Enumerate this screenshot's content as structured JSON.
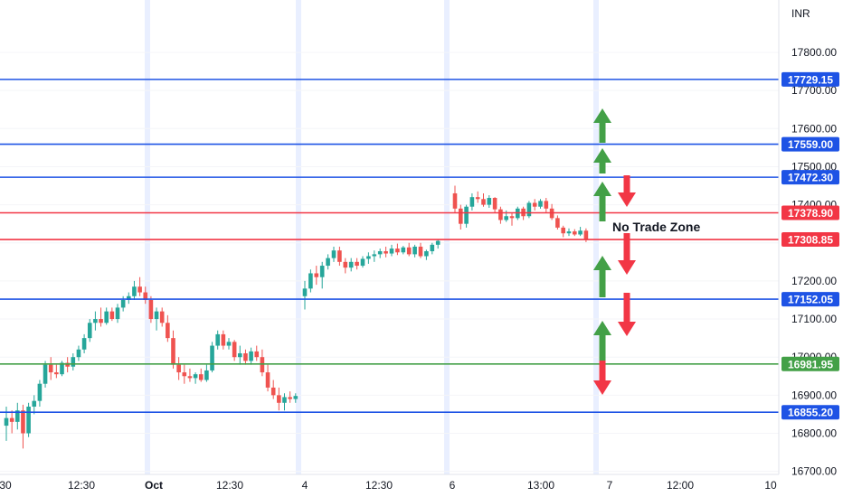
{
  "chart_data": {
    "type": "candlestick",
    "currency_label": "INR",
    "ylim": [
      16690,
      17920
    ],
    "y_ticks": [
      {
        "value": 17800,
        "label": "17800.00"
      },
      {
        "value": 17700,
        "label": "17700.00"
      },
      {
        "value": 17600,
        "label": "17600.00"
      },
      {
        "value": 17500,
        "label": "17500.00"
      },
      {
        "value": 17400,
        "label": "17400.00"
      },
      {
        "value": 17300,
        "label": "17300.00"
      },
      {
        "value": 17200,
        "label": "17200.00"
      },
      {
        "value": 17100,
        "label": "17100.00"
      },
      {
        "value": 17000,
        "label": "17000.00"
      },
      {
        "value": 16900,
        "label": "16900.00"
      },
      {
        "value": 16800,
        "label": "16800.00"
      },
      {
        "value": 16700,
        "label": "16700.00"
      }
    ],
    "x_ticks": [
      "30",
      "12:30",
      "Oct",
      "12:30",
      "4",
      "12:30",
      "6",
      "13:00",
      "7",
      "12:00",
      "10"
    ],
    "levels": [
      {
        "value": 17729.15,
        "label": "17729.15",
        "color": "#1e53e5"
      },
      {
        "value": 17559.0,
        "label": "17559.00",
        "color": "#1e53e5"
      },
      {
        "value": 17472.3,
        "label": "17472.30",
        "color": "#1e53e5"
      },
      {
        "value": 17378.9,
        "label": "17378.90",
        "color": "#f23645"
      },
      {
        "value": 17308.85,
        "label": "17308.85",
        "color": "#f23645"
      },
      {
        "value": 17152.05,
        "label": "17152.05",
        "color": "#1e53e5"
      },
      {
        "value": 16981.95,
        "label": "16981.95",
        "color": "#43a047"
      },
      {
        "value": 16855.2,
        "label": "16855.20",
        "color": "#1e53e5"
      }
    ],
    "annotation": "No Trade Zone",
    "colors": {
      "up": "#26a69a",
      "down": "#ef5350",
      "up_arrow": "#43a047",
      "down_arrow": "#f23645",
      "session_band": "#e9efff"
    },
    "candles": [
      {
        "o": 16820,
        "h": 16870,
        "l": 16780,
        "c": 16840
      },
      {
        "o": 16840,
        "h": 16860,
        "l": 16800,
        "c": 16830
      },
      {
        "o": 16830,
        "h": 16880,
        "l": 16810,
        "c": 16860
      },
      {
        "o": 16860,
        "h": 16875,
        "l": 16760,
        "c": 16800
      },
      {
        "o": 16800,
        "h": 16880,
        "l": 16790,
        "c": 16870
      },
      {
        "o": 16870,
        "h": 16900,
        "l": 16850,
        "c": 16885
      },
      {
        "o": 16885,
        "h": 16940,
        "l": 16870,
        "c": 16930
      },
      {
        "o": 16930,
        "h": 16990,
        "l": 16920,
        "c": 16980
      },
      {
        "o": 16980,
        "h": 17000,
        "l": 16940,
        "c": 16960
      },
      {
        "o": 16960,
        "h": 16980,
        "l": 16945,
        "c": 16955
      },
      {
        "o": 16955,
        "h": 16990,
        "l": 16950,
        "c": 16985
      },
      {
        "o": 16985,
        "h": 17000,
        "l": 16960,
        "c": 16975
      },
      {
        "o": 16975,
        "h": 17010,
        "l": 16965,
        "c": 17000
      },
      {
        "o": 17000,
        "h": 17030,
        "l": 16990,
        "c": 17020
      },
      {
        "o": 17020,
        "h": 17060,
        "l": 17010,
        "c": 17050
      },
      {
        "o": 17050,
        "h": 17100,
        "l": 17040,
        "c": 17090
      },
      {
        "o": 17090,
        "h": 17120,
        "l": 17070,
        "c": 17100
      },
      {
        "o": 17100,
        "h": 17130,
        "l": 17080,
        "c": 17090
      },
      {
        "o": 17090,
        "h": 17130,
        "l": 17085,
        "c": 17120
      },
      {
        "o": 17120,
        "h": 17130,
        "l": 17095,
        "c": 17100
      },
      {
        "o": 17100,
        "h": 17140,
        "l": 17090,
        "c": 17130
      },
      {
        "o": 17130,
        "h": 17160,
        "l": 17120,
        "c": 17150
      },
      {
        "o": 17150,
        "h": 17170,
        "l": 17140,
        "c": 17160
      },
      {
        "o": 17160,
        "h": 17200,
        "l": 17150,
        "c": 17185
      },
      {
        "o": 17185,
        "h": 17210,
        "l": 17160,
        "c": 17170
      },
      {
        "o": 17170,
        "h": 17185,
        "l": 17140,
        "c": 17150
      },
      {
        "o": 17150,
        "h": 17160,
        "l": 17090,
        "c": 17100
      },
      {
        "o": 17100,
        "h": 17130,
        "l": 17070,
        "c": 17120
      },
      {
        "o": 17120,
        "h": 17130,
        "l": 17080,
        "c": 17090
      },
      {
        "o": 17090,
        "h": 17110,
        "l": 17040,
        "c": 17050
      },
      {
        "o": 17050,
        "h": 17070,
        "l": 16970,
        "c": 16980
      },
      {
        "o": 16980,
        "h": 17000,
        "l": 16940,
        "c": 16960
      },
      {
        "o": 16960,
        "h": 16980,
        "l": 16930,
        "c": 16950
      },
      {
        "o": 16950,
        "h": 16970,
        "l": 16935,
        "c": 16945
      },
      {
        "o": 16945,
        "h": 16960,
        "l": 16930,
        "c": 16955
      },
      {
        "o": 16955,
        "h": 16970,
        "l": 16935,
        "c": 16940
      },
      {
        "o": 16940,
        "h": 16980,
        "l": 16935,
        "c": 16965
      },
      {
        "o": 16965,
        "h": 17040,
        "l": 16960,
        "c": 17030
      },
      {
        "o": 17030,
        "h": 17070,
        "l": 17020,
        "c": 17060
      },
      {
        "o": 17060,
        "h": 17070,
        "l": 17020,
        "c": 17030
      },
      {
        "o": 17030,
        "h": 17050,
        "l": 17020,
        "c": 17040
      },
      {
        "o": 17040,
        "h": 17045,
        "l": 16990,
        "c": 17000
      },
      {
        "o": 17000,
        "h": 17030,
        "l": 16980,
        "c": 17010
      },
      {
        "o": 17010,
        "h": 17020,
        "l": 16980,
        "c": 16990
      },
      {
        "o": 16990,
        "h": 17025,
        "l": 16980,
        "c": 17015
      },
      {
        "o": 17015,
        "h": 17030,
        "l": 16990,
        "c": 17000
      },
      {
        "o": 17000,
        "h": 17020,
        "l": 16950,
        "c": 16960
      },
      {
        "o": 16960,
        "h": 16980,
        "l": 16910,
        "c": 16920
      },
      {
        "o": 16920,
        "h": 16940,
        "l": 16890,
        "c": 16900
      },
      {
        "o": 16900,
        "h": 16920,
        "l": 16860,
        "c": 16880
      },
      {
        "o": 16880,
        "h": 16905,
        "l": 16860,
        "c": 16895
      },
      {
        "o": 16895,
        "h": 16910,
        "l": 16880,
        "c": 16890
      },
      {
        "o": 16890,
        "h": 16905,
        "l": 16880,
        "c": 16898
      },
      {
        "o": 17160,
        "h": 17200,
        "l": 17125,
        "c": 17180
      },
      {
        "o": 17180,
        "h": 17230,
        "l": 17170,
        "c": 17220
      },
      {
        "o": 17220,
        "h": 17240,
        "l": 17190,
        "c": 17210
      },
      {
        "o": 17210,
        "h": 17250,
        "l": 17180,
        "c": 17240
      },
      {
        "o": 17240,
        "h": 17270,
        "l": 17230,
        "c": 17260
      },
      {
        "o": 17260,
        "h": 17290,
        "l": 17250,
        "c": 17280
      },
      {
        "o": 17280,
        "h": 17290,
        "l": 17240,
        "c": 17250
      },
      {
        "o": 17250,
        "h": 17260,
        "l": 17220,
        "c": 17235
      },
      {
        "o": 17235,
        "h": 17260,
        "l": 17225,
        "c": 17250
      },
      {
        "o": 17250,
        "h": 17260,
        "l": 17230,
        "c": 17240
      },
      {
        "o": 17240,
        "h": 17265,
        "l": 17235,
        "c": 17258
      },
      {
        "o": 17258,
        "h": 17275,
        "l": 17245,
        "c": 17265
      },
      {
        "o": 17265,
        "h": 17280,
        "l": 17250,
        "c": 17270
      },
      {
        "o": 17270,
        "h": 17285,
        "l": 17260,
        "c": 17278
      },
      {
        "o": 17278,
        "h": 17290,
        "l": 17262,
        "c": 17272
      },
      {
        "o": 17272,
        "h": 17295,
        "l": 17265,
        "c": 17285
      },
      {
        "o": 17285,
        "h": 17298,
        "l": 17268,
        "c": 17275
      },
      {
        "o": 17275,
        "h": 17292,
        "l": 17270,
        "c": 17288
      },
      {
        "o": 17288,
        "h": 17300,
        "l": 17265,
        "c": 17270
      },
      {
        "o": 17270,
        "h": 17295,
        "l": 17262,
        "c": 17290
      },
      {
        "o": 17290,
        "h": 17300,
        "l": 17260,
        "c": 17265
      },
      {
        "o": 17265,
        "h": 17282,
        "l": 17255,
        "c": 17278
      },
      {
        "o": 17278,
        "h": 17300,
        "l": 17270,
        "c": 17295
      },
      {
        "o": 17295,
        "h": 17310,
        "l": 17285,
        "c": 17305
      },
      {
        "o": 17430,
        "h": 17450,
        "l": 17380,
        "c": 17390
      },
      {
        "o": 17390,
        "h": 17400,
        "l": 17335,
        "c": 17350
      },
      {
        "o": 17350,
        "h": 17400,
        "l": 17340,
        "c": 17395
      },
      {
        "o": 17395,
        "h": 17430,
        "l": 17385,
        "c": 17420
      },
      {
        "o": 17420,
        "h": 17435,
        "l": 17405,
        "c": 17415
      },
      {
        "o": 17415,
        "h": 17430,
        "l": 17395,
        "c": 17400
      },
      {
        "o": 17400,
        "h": 17425,
        "l": 17392,
        "c": 17418
      },
      {
        "o": 17418,
        "h": 17420,
        "l": 17380,
        "c": 17388
      },
      {
        "o": 17388,
        "h": 17395,
        "l": 17350,
        "c": 17360
      },
      {
        "o": 17360,
        "h": 17385,
        "l": 17355,
        "c": 17370
      },
      {
        "o": 17370,
        "h": 17378,
        "l": 17345,
        "c": 17365
      },
      {
        "o": 17365,
        "h": 17395,
        "l": 17360,
        "c": 17390
      },
      {
        "o": 17390,
        "h": 17395,
        "l": 17360,
        "c": 17370
      },
      {
        "o": 17370,
        "h": 17410,
        "l": 17365,
        "c": 17405
      },
      {
        "o": 17405,
        "h": 17415,
        "l": 17385,
        "c": 17395
      },
      {
        "o": 17395,
        "h": 17415,
        "l": 17390,
        "c": 17410
      },
      {
        "o": 17410,
        "h": 17418,
        "l": 17380,
        "c": 17390
      },
      {
        "o": 17390,
        "h": 17402,
        "l": 17360,
        "c": 17365
      },
      {
        "o": 17365,
        "h": 17372,
        "l": 17335,
        "c": 17340
      },
      {
        "o": 17340,
        "h": 17345,
        "l": 17315,
        "c": 17325
      },
      {
        "o": 17325,
        "h": 17338,
        "l": 17318,
        "c": 17330
      },
      {
        "o": 17330,
        "h": 17336,
        "l": 17318,
        "c": 17322
      },
      {
        "o": 17322,
        "h": 17342,
        "l": 17318,
        "c": 17332
      },
      {
        "o": 17332,
        "h": 17338,
        "l": 17302,
        "c": 17310
      }
    ]
  }
}
